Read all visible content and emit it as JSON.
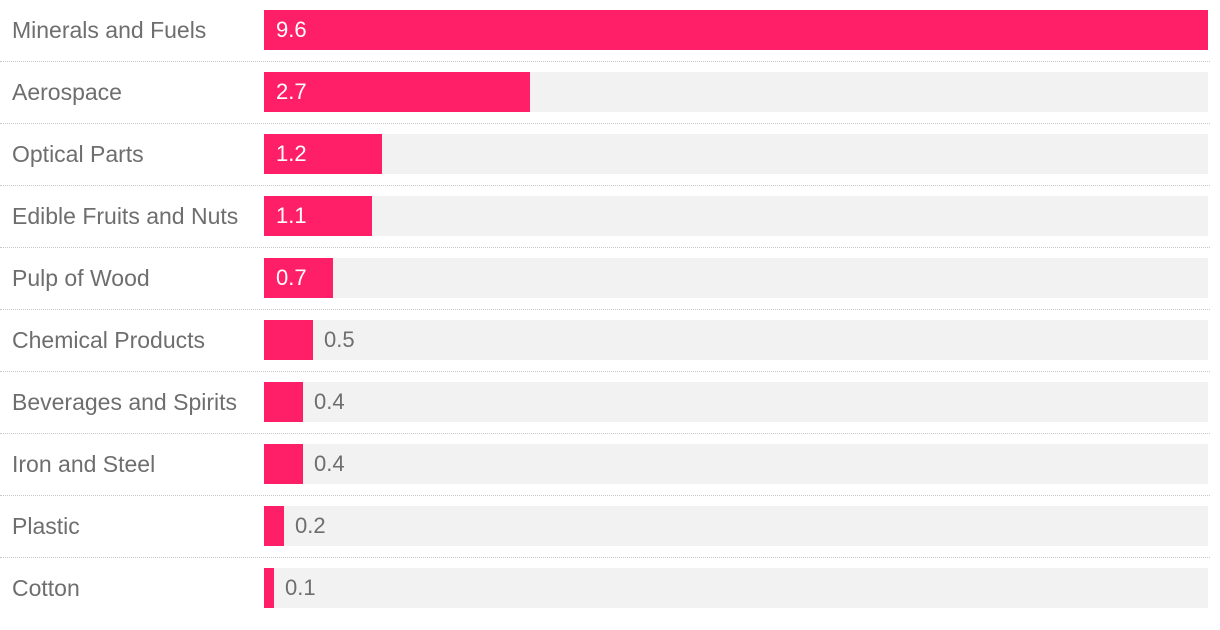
{
  "chart_data": {
    "type": "bar",
    "orientation": "horizontal",
    "title": "",
    "xlabel": "",
    "ylabel": "",
    "categories": [
      "Minerals and Fuels",
      "Aerospace",
      "Optical Parts",
      "Edible Fruits and Nuts",
      "Pulp of Wood",
      "Chemical Products",
      "Beverages and Spirits",
      "Iron and Steel",
      "Plastic",
      "Cotton"
    ],
    "values": [
      9.6,
      2.7,
      1.2,
      1.1,
      0.7,
      0.5,
      0.4,
      0.4,
      0.2,
      0.1
    ],
    "value_labels": [
      "9.6",
      "2.7",
      "1.2",
      "1.1",
      "0.7",
      "0.5",
      "0.4",
      "0.4",
      "0.2",
      "0.1"
    ],
    "xlim": [
      0,
      9.6
    ],
    "grid": false,
    "legend": "none",
    "colors": {
      "bar": "#ff1f69",
      "track": "#f2f2f2",
      "label_text": "#6e6e6e",
      "value_text_inside": "#ffffff"
    }
  }
}
